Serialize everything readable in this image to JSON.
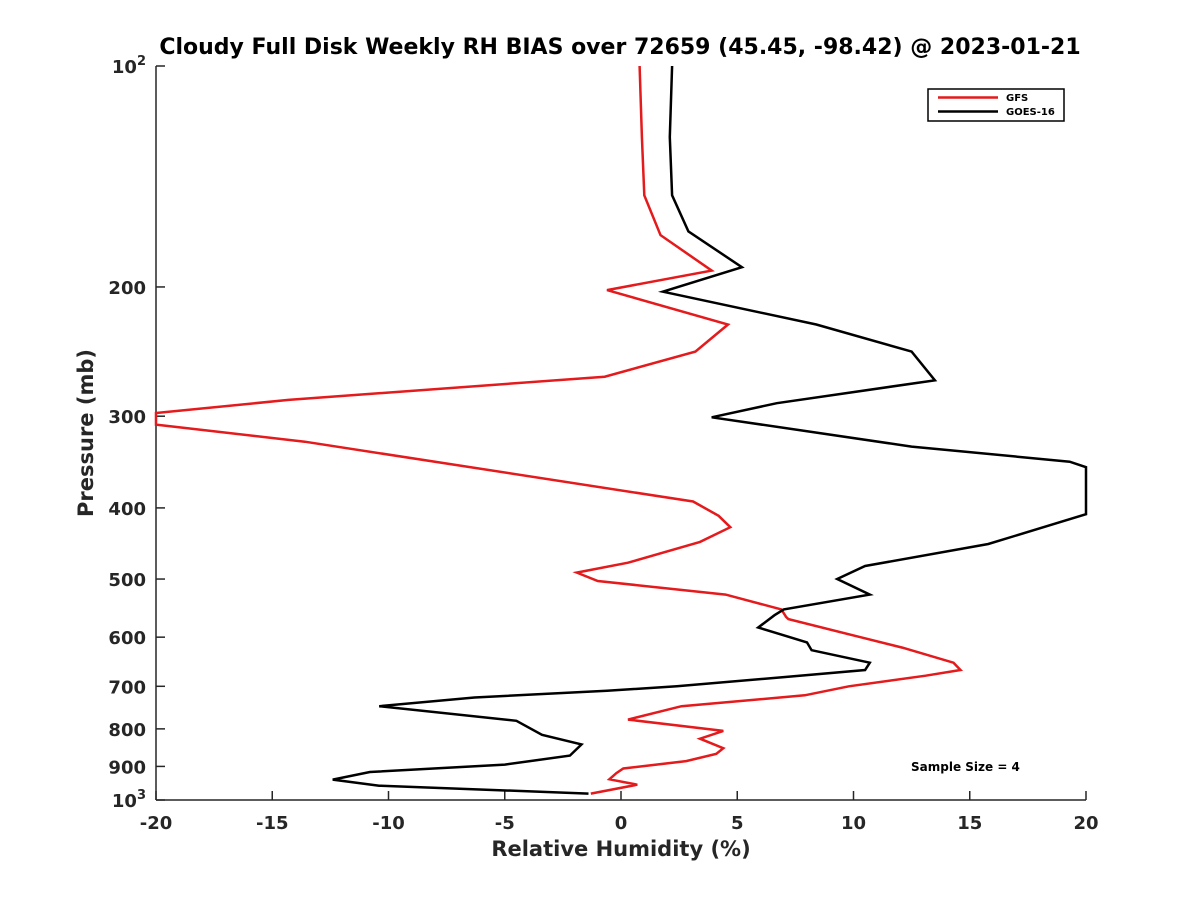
{
  "chart_data": {
    "type": "line",
    "title": "Cloudy Full Disk Weekly RH BIAS over 72659 (45.45, -98.42) @ 2023-01-21",
    "xlabel": "Relative Humidity (%)",
    "ylabel": "Pressure (mb)",
    "xlim": [
      -20,
      20
    ],
    "ylim": [
      100,
      1000
    ],
    "y_scale": "log",
    "y_reversed": true,
    "grid": false,
    "legend_position": "top-right",
    "x_ticks": [
      -20,
      -15,
      -10,
      -5,
      0,
      5,
      10,
      15,
      20
    ],
    "x_tick_labels": [
      "-20",
      "-15",
      "-10",
      "-5",
      "0",
      "5",
      "10",
      "15",
      "20"
    ],
    "y_ticks": [
      {
        "value": 100,
        "base": "10",
        "exp": "2"
      },
      {
        "value": 200,
        "label": "200"
      },
      {
        "value": 300,
        "label": "300"
      },
      {
        "value": 400,
        "label": "400"
      },
      {
        "value": 500,
        "label": "500"
      },
      {
        "value": 600,
        "label": "600"
      },
      {
        "value": 700,
        "label": "700"
      },
      {
        "value": 800,
        "label": "800"
      },
      {
        "value": 900,
        "label": "900"
      },
      {
        "value": 1000,
        "base": "10",
        "exp": "3"
      }
    ],
    "annotation": "Sample Size = 4",
    "series": [
      {
        "name": "GFS",
        "color": "#e41a1c",
        "points": [
          [
            0.8,
            100
          ],
          [
            0.9,
            125
          ],
          [
            1.0,
            150
          ],
          [
            1.7,
            170
          ],
          [
            3.9,
            190
          ],
          [
            -0.6,
            202
          ],
          [
            4.6,
            225
          ],
          [
            3.2,
            245
          ],
          [
            -0.7,
            265
          ],
          [
            -14.3,
            285
          ],
          [
            -20.0,
            297
          ],
          [
            -20.0,
            308
          ],
          [
            -13.6,
            325
          ],
          [
            3.1,
            392
          ],
          [
            4.2,
            410
          ],
          [
            4.7,
            425
          ],
          [
            3.4,
            445
          ],
          [
            0.3,
            475
          ],
          [
            -1.9,
            490
          ],
          [
            -1.0,
            503
          ],
          [
            4.5,
            525
          ],
          [
            6.9,
            550
          ],
          [
            7.1,
            563
          ],
          [
            7.2,
            567
          ],
          [
            10.3,
            600
          ],
          [
            12.1,
            620
          ],
          [
            14.3,
            650
          ],
          [
            14.6,
            665
          ],
          [
            13.1,
            677
          ],
          [
            9.8,
            700
          ],
          [
            7.9,
            720
          ],
          [
            2.6,
            745
          ],
          [
            0.3,
            777
          ],
          [
            4.4,
            805
          ],
          [
            3.4,
            825
          ],
          [
            4.4,
            850
          ],
          [
            4.1,
            865
          ],
          [
            2.8,
            885
          ],
          [
            0.1,
            906
          ],
          [
            -0.2,
            919
          ],
          [
            -0.5,
            937
          ],
          [
            0.7,
            953
          ],
          [
            -1.3,
            980
          ]
        ]
      },
      {
        "name": "GOES-16",
        "color": "#000000",
        "points": [
          [
            2.2,
            100
          ],
          [
            2.1,
            125
          ],
          [
            2.2,
            150
          ],
          [
            2.9,
            168
          ],
          [
            5.2,
            188
          ],
          [
            1.8,
            203
          ],
          [
            8.4,
            225
          ],
          [
            12.5,
            245
          ],
          [
            13.5,
            268
          ],
          [
            6.7,
            288
          ],
          [
            3.9,
            301
          ],
          [
            12.5,
            330
          ],
          [
            19.3,
            346
          ],
          [
            20.0,
            352
          ],
          [
            20.0,
            408
          ],
          [
            15.8,
            448
          ],
          [
            10.5,
            480
          ],
          [
            9.3,
            500
          ],
          [
            10.7,
            525
          ],
          [
            7.0,
            550
          ],
          [
            6.6,
            560
          ],
          [
            5.9,
            582
          ],
          [
            8.0,
            610
          ],
          [
            8.2,
            625
          ],
          [
            10.7,
            650
          ],
          [
            10.5,
            665
          ],
          [
            7.0,
            680
          ],
          [
            2.4,
            700
          ],
          [
            -0.6,
            710
          ],
          [
            -6.3,
            725
          ],
          [
            -10.4,
            745
          ],
          [
            -4.5,
            780
          ],
          [
            -3.4,
            815
          ],
          [
            -1.7,
            840
          ],
          [
            -2.2,
            870
          ],
          [
            -5.0,
            895
          ],
          [
            -10.8,
            916
          ],
          [
            -12.4,
            938
          ],
          [
            -10.4,
            956
          ],
          [
            -1.4,
            980
          ]
        ]
      }
    ]
  }
}
